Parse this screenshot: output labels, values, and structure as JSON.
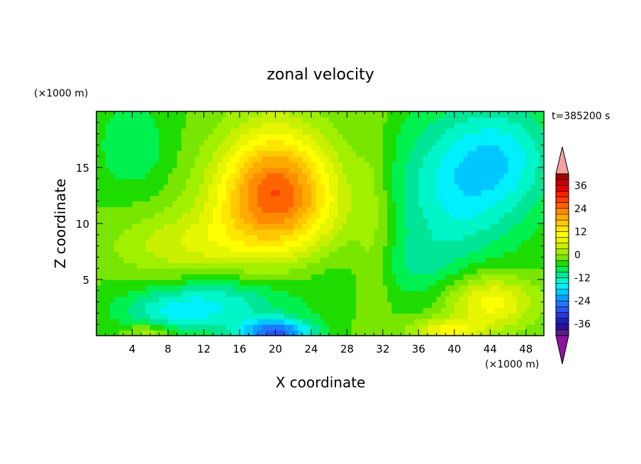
{
  "chart_data": {
    "type": "heatmap",
    "title": "zonal velocity",
    "xlabel": "X coordinate",
    "ylabel": "Z coordinate",
    "x_unit": "(×1000 m)",
    "y_unit": "(×1000 m)",
    "time_label": "t=385200 s",
    "xlim": [
      0,
      50
    ],
    "ylim": [
      0,
      20
    ],
    "xticks": [
      4,
      8,
      12,
      16,
      20,
      24,
      28,
      32,
      36,
      40,
      44,
      48
    ],
    "yticks": [
      5,
      10,
      15
    ],
    "colorbar": {
      "levels": [
        -42,
        -39,
        -36,
        -33,
        -30,
        -27,
        -24,
        -21,
        -18,
        -15,
        -12,
        -9,
        -6,
        -3,
        0,
        3,
        6,
        9,
        12,
        15,
        18,
        21,
        24,
        27,
        30,
        33,
        36,
        39,
        42
      ],
      "colors": [
        "#5a1e8c",
        "#2e0e9a",
        "#1e1eb4",
        "#2836dc",
        "#2855f0",
        "#1e78ff",
        "#0a9cff",
        "#00c8ff",
        "#00f0ff",
        "#00f5c8",
        "#00e696",
        "#00f050",
        "#1edc00",
        "#78e600",
        "#a0f000",
        "#c8f000",
        "#e6f500",
        "#ffff00",
        "#ffe600",
        "#ffc800",
        "#ffaa00",
        "#ff8c00",
        "#ff6400",
        "#ff3c00",
        "#ff1e00",
        "#e60000",
        "#c80000",
        "#a00000"
      ],
      "tick_labels": [
        "36",
        "24",
        "12",
        "0",
        "-12",
        "-24",
        "-36"
      ],
      "tick_values": [
        36,
        24,
        12,
        0,
        -12,
        -24,
        -36
      ],
      "over_color": "#f5a0a0",
      "under_color": "#8c14a0"
    },
    "field_features": [
      {
        "x": 20,
        "z": 11.5,
        "value": 20,
        "sx": 7,
        "sz": 4.5
      },
      {
        "x": 20,
        "z": 15,
        "value": 14,
        "sx": 6,
        "sz": 5
      },
      {
        "x": 10,
        "z": 8,
        "value": 8,
        "sx": 8,
        "sz": 3
      },
      {
        "x": 4,
        "z": 17,
        "value": -6,
        "sx": 4,
        "sz": 4
      },
      {
        "x": 31,
        "z": 10,
        "value": 4,
        "sx": 2,
        "sz": 12
      },
      {
        "x": 40,
        "z": 13,
        "value": -12,
        "sx": 7,
        "sz": 7
      },
      {
        "x": 46,
        "z": 16,
        "value": -10,
        "sx": 6,
        "sz": 5
      },
      {
        "x": 20,
        "z": 0.3,
        "value": -24,
        "sx": 4,
        "sz": 1.2
      },
      {
        "x": 14,
        "z": 3,
        "value": -10,
        "sx": 8,
        "sz": 2.5
      },
      {
        "x": 8,
        "z": 2,
        "value": -8,
        "sx": 6,
        "sz": 2
      },
      {
        "x": 44,
        "z": 3,
        "value": 14,
        "sx": 5,
        "sz": 2.5
      },
      {
        "x": 39,
        "z": 0.5,
        "value": 12,
        "sx": 4,
        "sz": 1
      },
      {
        "x": 6,
        "z": 0.4,
        "value": 8,
        "sx": 3,
        "sz": 0.8
      },
      {
        "x": 36,
        "z": 6,
        "value": -4,
        "sx": 4,
        "sz": 3
      },
      {
        "x": 26,
        "z": 5,
        "value": -2,
        "sx": 4,
        "sz": 3
      }
    ],
    "base_value": -3
  }
}
